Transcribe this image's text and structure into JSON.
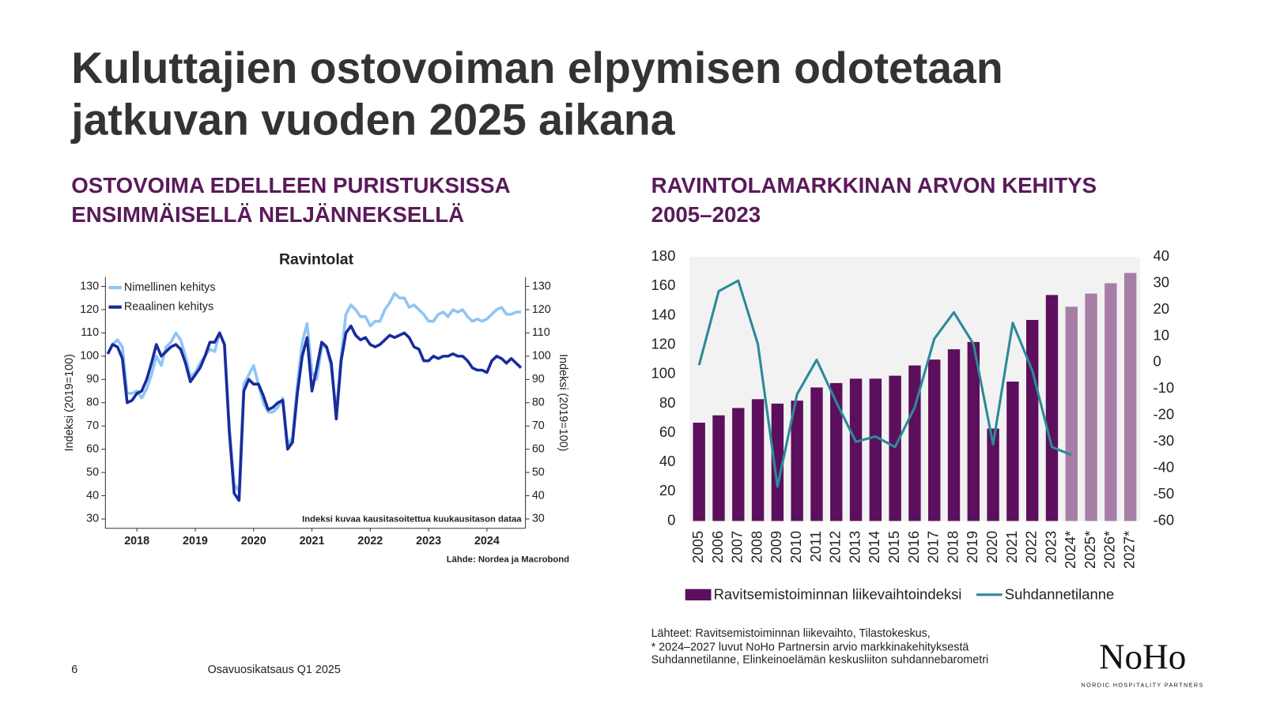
{
  "title": [
    "Kuluttajien ostovoiman elpymisen odotetaan",
    "jatkuvan vuoden 2025 aikana"
  ],
  "left_heading": [
    "OSTOVOIMA EDELLEEN PURISTUKSISSA",
    "ENSIMMÄISELLÄ NELJÄNNEKSELLÄ"
  ],
  "right_heading": [
    "RAVINTOLAMARKKINAN ARVON KEHITYS",
    "2005–2023"
  ],
  "sources": [
    "Lähteet: Ravitsemistoiminnan liikevaihto, Tilastokeskus,",
    "* 2024–2027 luvut NoHo Partnersin arvio markkinakehityksestä",
    "Suhdannetilanne, Elinkeinoelämän keskusliiton suhdannebarometri"
  ],
  "footer": {
    "page": "6",
    "report": "Osavuosikatsaus Q1 2025"
  },
  "logo": {
    "name": "NoHo",
    "tagline": "NORDIC HOSPITALITY PARTNERS"
  },
  "chart_data": [
    {
      "type": "line",
      "title": "Ravintolat",
      "x": [
        2018,
        2018.083,
        2018.167,
        2018.25,
        2018.333,
        2018.417,
        2018.5,
        2018.583,
        2018.667,
        2018.75,
        2018.833,
        2018.917,
        2019,
        2019.083,
        2019.167,
        2019.25,
        2019.333,
        2019.417,
        2019.5,
        2019.583,
        2019.667,
        2019.75,
        2019.833,
        2019.917,
        2020,
        2020.083,
        2020.167,
        2020.25,
        2020.333,
        2020.417,
        2020.5,
        2020.583,
        2020.667,
        2020.75,
        2020.833,
        2020.917,
        2021,
        2021.083,
        2021.167,
        2021.25,
        2021.333,
        2021.417,
        2021.5,
        2021.583,
        2021.667,
        2021.75,
        2021.833,
        2021.917,
        2022,
        2022.083,
        2022.167,
        2022.25,
        2022.333,
        2022.417,
        2022.5,
        2022.583,
        2022.667,
        2022.75,
        2022.833,
        2022.917,
        2023,
        2023.083,
        2023.167,
        2023.25,
        2023.333,
        2023.417,
        2023.5,
        2023.583,
        2023.667,
        2023.75,
        2023.833,
        2023.917,
        2024,
        2024.083,
        2024.167,
        2024.25,
        2024.333,
        2024.417,
        2024.5,
        2024.583,
        2024.667,
        2024.75,
        2024.833,
        2024.917,
        2025,
        2025.083
      ],
      "xlim": [
        2017.96,
        2025.16
      ],
      "xticks": [
        {
          "value": 2018.5,
          "label": "2018"
        },
        {
          "value": 2019.5,
          "label": "2019"
        },
        {
          "value": 2020.5,
          "label": "2020"
        },
        {
          "value": 2021.5,
          "label": "2021"
        },
        {
          "value": 2022.5,
          "label": "2022"
        },
        {
          "value": 2023.5,
          "label": "2023"
        },
        {
          "value": 2024.5,
          "label": "2024"
        }
      ],
      "ylim": [
        26,
        134
      ],
      "yticks": [
        30,
        40,
        50,
        60,
        70,
        80,
        90,
        100,
        110,
        120,
        130
      ],
      "y2lim": [
        26,
        134
      ],
      "y2ticks": [
        30,
        40,
        50,
        60,
        70,
        80,
        90,
        100,
        110,
        120,
        130
      ],
      "ylabel": "Indeksi (2019=100)",
      "y2label": "Indeksi (2019=100)",
      "annotation": "Indeksi kuvaa kausitasoitettua kuukausitason dataa",
      "source": "Lähde: Nordea ja Macrobond",
      "legend": "upper left",
      "series": [
        {
          "name": "Nimellinen kehitys",
          "color": "#8ec5f5",
          "values": [
            101,
            105,
            107,
            104,
            84,
            84,
            85,
            82,
            86,
            92,
            100,
            96,
            104,
            106,
            110,
            107,
            100,
            91,
            93,
            97,
            100,
            103,
            102,
            110,
            105,
            70,
            45,
            42,
            88,
            92,
            96,
            88,
            80,
            76,
            76,
            78,
            82,
            62,
            65,
            88,
            106,
            114,
            93,
            90,
            104,
            104,
            95,
            76,
            100,
            118,
            122,
            120,
            117,
            117,
            113,
            115,
            115,
            120,
            123,
            127,
            125,
            125,
            121,
            122,
            120,
            118,
            115,
            115,
            118,
            119,
            117,
            120,
            119,
            120,
            117,
            115,
            116,
            115,
            116,
            118,
            120,
            121,
            118,
            118,
            119,
            119
          ]
        },
        {
          "name": "Reaalinen kehitys",
          "color": "#1a2b9c",
          "values": [
            101,
            105,
            104,
            99,
            80,
            81,
            84,
            85,
            90,
            97,
            105,
            100,
            102,
            104,
            105,
            103,
            97,
            89,
            92,
            95,
            100,
            106,
            106,
            110,
            105,
            68,
            41,
            38,
            85,
            90,
            88,
            88,
            83,
            77,
            78,
            80,
            81,
            60,
            63,
            84,
            100,
            108,
            85,
            95,
            106,
            104,
            97,
            73,
            98,
            110,
            113,
            109,
            107,
            108,
            105,
            104,
            105,
            107,
            109,
            108,
            109,
            110,
            108,
            104,
            103,
            98,
            98,
            100,
            99,
            100,
            100,
            101,
            100,
            100,
            98,
            95,
            94,
            94,
            93,
            98,
            100,
            99,
            97,
            99,
            97,
            95
          ]
        }
      ]
    },
    {
      "type": "combo",
      "categories": [
        "2005",
        "2006",
        "2007",
        "2008",
        "2009",
        "2010",
        "2011",
        "2012",
        "2013",
        "2014",
        "2015",
        "2016",
        "2017",
        "2018",
        "2019",
        "2020",
        "2021",
        "2022",
        "2023",
        "2024*",
        "2025*",
        "2026*",
        "2027*"
      ],
      "ylim": [
        0,
        180
      ],
      "yticks": [
        0,
        20,
        40,
        60,
        80,
        100,
        120,
        140,
        160,
        180
      ],
      "y2lim": [
        -60,
        40
      ],
      "y2ticks": [
        -60,
        -50,
        -40,
        -30,
        -20,
        -10,
        0,
        10,
        20,
        30,
        40
      ],
      "legend": "bottom",
      "series": [
        {
          "name": "Ravitsemistoiminnan liikevaihtoindeksi",
          "type": "bar",
          "color": "#5c0f5c",
          "colors": [
            "#5c0f5c",
            "#5c0f5c",
            "#5c0f5c",
            "#5c0f5c",
            "#5c0f5c",
            "#5c0f5c",
            "#5c0f5c",
            "#5c0f5c",
            "#5c0f5c",
            "#5c0f5c",
            "#5c0f5c",
            "#5c0f5c",
            "#5c0f5c",
            "#5c0f5c",
            "#5c0f5c",
            "#5c0f5c",
            "#5c0f5c",
            "#5c0f5c",
            "#5c0f5c",
            "#a67ea6",
            "#a67ea6",
            "#a67ea6",
            "#a67ea6"
          ],
          "values": [
            67,
            72,
            77,
            83,
            80,
            82,
            91,
            94,
            97,
            97,
            99,
            106,
            110,
            117,
            122,
            63,
            95,
            137,
            154,
            146,
            155,
            162,
            169
          ]
        },
        {
          "name": "Suhdannetilanne",
          "type": "line",
          "axis": "y2",
          "color": "#2b8a99",
          "values": [
            -1,
            27,
            31,
            7,
            -47,
            -12,
            1,
            -15,
            -30,
            -28,
            -32,
            -17,
            9,
            19,
            7,
            -31,
            15,
            -3,
            -32,
            -35,
            null,
            null,
            null
          ]
        }
      ]
    }
  ]
}
